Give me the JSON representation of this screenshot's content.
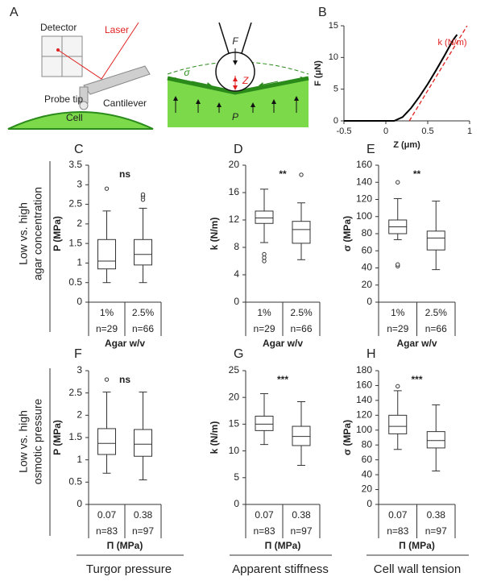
{
  "panel_labels": [
    "A",
    "B",
    "C",
    "D",
    "E",
    "F",
    "G",
    "H"
  ],
  "diagram": {
    "detector": "Detector",
    "laser": "Laser",
    "cantilever": "Cantilever",
    "probe_tip": "Probe tip",
    "cell": "Cell",
    "force": "F",
    "tension": "σ",
    "indentation": "Z",
    "pressure": "P"
  },
  "row_labels": [
    [
      "Low vs. high",
      "agar concentration"
    ],
    [
      "Low vs. high",
      "osmotic pressure"
    ]
  ],
  "column_labels": [
    "Turgor pressure",
    "Apparent stiffness",
    "Cell wall tension"
  ],
  "chart_data": [
    {
      "type": "line",
      "xlabel": "Z (μm)",
      "ylabel": "F (μN)",
      "annotation": "k (N/m)",
      "x": [
        -0.5,
        0,
        0.1,
        0.2,
        0.3,
        0.4,
        0.5,
        0.6,
        0.7,
        0.8,
        0.85
      ],
      "series": [
        {
          "color": "#000000",
          "values": [
            0,
            0,
            0,
            0.6,
            2,
            3.8,
            5.8,
            8,
            10.3,
            12.7,
            13.6
          ]
        }
      ],
      "fit": {
        "color": "#e02020",
        "x": [
          0.28,
          0.97
        ],
        "values": [
          0,
          15
        ]
      },
      "xlim": [
        -0.5,
        1
      ],
      "ylim": [
        0,
        15
      ],
      "xticks": [
        -0.5,
        0,
        0.5,
        1
      ],
      "yticks": [
        0,
        5,
        10,
        15
      ]
    },
    {
      "type": "box",
      "ylabel": "P (MPa)",
      "significance": "ns",
      "categories": [
        "1%",
        "2.5%"
      ],
      "n_labels": [
        "n=29",
        "n=66"
      ],
      "xlabel": "Agar w/v",
      "ylim": [
        0,
        3.5
      ],
      "yticks": [
        0,
        0.5,
        1,
        1.5,
        2,
        2.5,
        3,
        3.5
      ],
      "boxes": [
        {
          "whislo": 0.5,
          "q1": 0.85,
          "med": 1.05,
          "q3": 1.6,
          "whishi": 2.33,
          "fliers": [
            2.9
          ]
        },
        {
          "whislo": 0.5,
          "q1": 0.95,
          "med": 1.22,
          "q3": 1.6,
          "whishi": 2.4,
          "fliers": [
            2.62,
            2.7,
            2.75
          ]
        }
      ]
    },
    {
      "type": "box",
      "ylabel": "k (N/m)",
      "significance": "**",
      "categories": [
        "1%",
        "2.5%"
      ],
      "n_labels": [
        "n=29",
        "n=66"
      ],
      "xlabel": "Agar w/v",
      "ylim": [
        0,
        20
      ],
      "yticks": [
        0,
        4,
        8,
        12,
        16,
        20
      ],
      "boxes": [
        {
          "whislo": 8.7,
          "q1": 11.5,
          "med": 12.3,
          "q3": 13.3,
          "whishi": 16.5,
          "fliers": [
            6,
            6.5,
            7
          ]
        },
        {
          "whislo": 6.2,
          "q1": 8.6,
          "med": 10.6,
          "q3": 11.8,
          "whishi": 14.5,
          "fliers": [
            18.6
          ]
        }
      ]
    },
    {
      "type": "box",
      "ylabel": "σ (MPa)",
      "significance": "**",
      "categories": [
        "1%",
        "2.5%"
      ],
      "n_labels": [
        "n=29",
        "n=66"
      ],
      "xlabel": "Agar w/v",
      "ylim": [
        0,
        160
      ],
      "yticks": [
        0,
        20,
        40,
        60,
        80,
        100,
        120,
        140,
        160
      ],
      "boxes": [
        {
          "whislo": 73,
          "q1": 80,
          "med": 88,
          "q3": 96,
          "whishi": 121,
          "fliers": [
            140,
            42,
            44
          ]
        },
        {
          "whislo": 38,
          "q1": 61,
          "med": 75,
          "q3": 83,
          "whishi": 118,
          "fliers": []
        }
      ]
    },
    {
      "type": "box",
      "ylabel": "P (MPa)",
      "significance": "ns",
      "categories": [
        "0.07",
        "0.38"
      ],
      "n_labels": [
        "n=83",
        "n=97"
      ],
      "xlabel": "Π (MPa)",
      "ylim": [
        0,
        3
      ],
      "yticks": [
        0,
        0.5,
        1,
        1.5,
        2,
        2.5,
        3
      ],
      "boxes": [
        {
          "whislo": 0.7,
          "q1": 1.12,
          "med": 1.37,
          "q3": 1.7,
          "whishi": 2.52,
          "fliers": [
            2.8
          ]
        },
        {
          "whislo": 0.55,
          "q1": 1.08,
          "med": 1.35,
          "q3": 1.68,
          "whishi": 2.52,
          "fliers": []
        }
      ]
    },
    {
      "type": "box",
      "ylabel": "k (N/m)",
      "significance": "***",
      "categories": [
        "0.07",
        "0.38"
      ],
      "n_labels": [
        "n=83",
        "n=97"
      ],
      "xlabel": "Π (MPa)",
      "ylim": [
        0,
        25
      ],
      "yticks": [
        0,
        5,
        10,
        15,
        20,
        25
      ],
      "boxes": [
        {
          "whislo": 11.2,
          "q1": 13.8,
          "med": 15,
          "q3": 16.5,
          "whishi": 20.7,
          "fliers": []
        },
        {
          "whislo": 7.3,
          "q1": 11,
          "med": 12.7,
          "q3": 14.6,
          "whishi": 19.2,
          "fliers": []
        }
      ]
    },
    {
      "type": "box",
      "ylabel": "σ (MPa)",
      "significance": "***",
      "categories": [
        "0.07",
        "0.38"
      ],
      "n_labels": [
        "n=83",
        "n=97"
      ],
      "xlabel": "Π (MPa)",
      "ylim": [
        0,
        180
      ],
      "yticks": [
        0,
        20,
        40,
        60,
        80,
        100,
        120,
        140,
        160,
        180
      ],
      "boxes": [
        {
          "whislo": 74,
          "q1": 95,
          "med": 105,
          "q3": 120,
          "whishi": 153,
          "fliers": [
            159
          ]
        },
        {
          "whislo": 45,
          "q1": 76,
          "med": 86,
          "q3": 98,
          "whishi": 134,
          "fliers": []
        }
      ]
    }
  ]
}
